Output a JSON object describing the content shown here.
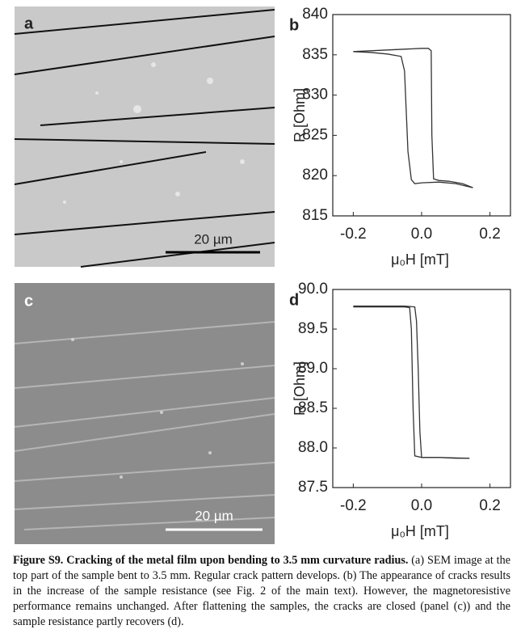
{
  "images": [
    {
      "label": "a",
      "scale_bar": "20 µm"
    },
    {
      "label": "c",
      "scale_bar": "20 µm"
    }
  ],
  "chart_data": [
    {
      "type": "line",
      "label": "b",
      "x_label": "μ₀H [mT]",
      "y_label": "R [Ohm]",
      "xlim": [
        -0.26,
        0.26
      ],
      "ylim": [
        815,
        840
      ],
      "xticks": [
        -0.2,
        {
          "value": 0,
          "label": "0.0"
        },
        0.2
      ],
      "yticks": [
        815,
        820,
        825,
        830,
        835,
        840
      ],
      "series": [
        {
          "color": "#333333",
          "x": [
            0.15,
            0.12,
            0.08,
            0.05,
            0.035,
            0.03,
            0.028,
            0.02,
            0.0,
            -0.05,
            -0.1,
            -0.15,
            -0.2
          ],
          "values": [
            818.5,
            819.0,
            819.3,
            819.4,
            819.6,
            825,
            835.5,
            835.8,
            835.8,
            835.7,
            835.6,
            835.5,
            835.4
          ]
        },
        {
          "color": "#333333",
          "x": [
            -0.2,
            -0.15,
            -0.1,
            -0.06,
            -0.05,
            -0.045,
            -0.04,
            -0.03,
            -0.02,
            0.0,
            0.05,
            0.1,
            0.15
          ],
          "values": [
            835.4,
            835.3,
            835.1,
            834.8,
            833,
            828,
            823,
            819.5,
            819.0,
            819.1,
            819.2,
            819.0,
            818.5
          ]
        }
      ]
    },
    {
      "type": "line",
      "label": "d",
      "x_label": "μ₀H [mT]",
      "y_label": "R [Ohm]",
      "xlim": [
        -0.26,
        0.26
      ],
      "ylim": [
        87.5,
        90.0
      ],
      "xticks": [
        -0.2,
        {
          "value": 0,
          "label": "0.0"
        },
        0.2
      ],
      "yticks": [
        87.5,
        {
          "value": 88,
          "label": "88.0"
        },
        88.5,
        {
          "value": 89,
          "label": "89.0"
        },
        89.5,
        {
          "value": 90,
          "label": "90.0"
        }
      ],
      "series": [
        {
          "color": "#333333",
          "x": [
            -0.2,
            -0.1,
            -0.05,
            -0.035,
            -0.03,
            -0.025,
            -0.02,
            0.0,
            0.05,
            0.1,
            0.14
          ],
          "values": [
            89.78,
            89.78,
            89.78,
            89.77,
            89.5,
            88.5,
            87.9,
            87.88,
            87.88,
            87.87,
            87.87
          ]
        },
        {
          "color": "#333333",
          "x": [
            0.14,
            0.05,
            0.0,
            -0.005,
            -0.01,
            -0.015,
            -0.02,
            -0.05,
            -0.1,
            -0.2
          ],
          "values": [
            87.87,
            87.88,
            87.88,
            88.2,
            89.0,
            89.6,
            89.78,
            89.79,
            89.79,
            89.79
          ]
        }
      ]
    }
  ],
  "caption": {
    "title": "Figure S9. Cracking of the metal film upon bending to 3.5 mm curvature radius.",
    "text": " (a) SEM image at the top part of the sample bent to 3.5 mm. Regular crack pattern develops. (b) The appearance of cracks results in the increase of the sample resistance (see Fig. 2 of the main text). However, the magnetoresistive performance remains unchanged. After flattening the samples, the cracks are closed (panel (c)) and the sample resistance partly recovers (d)."
  }
}
